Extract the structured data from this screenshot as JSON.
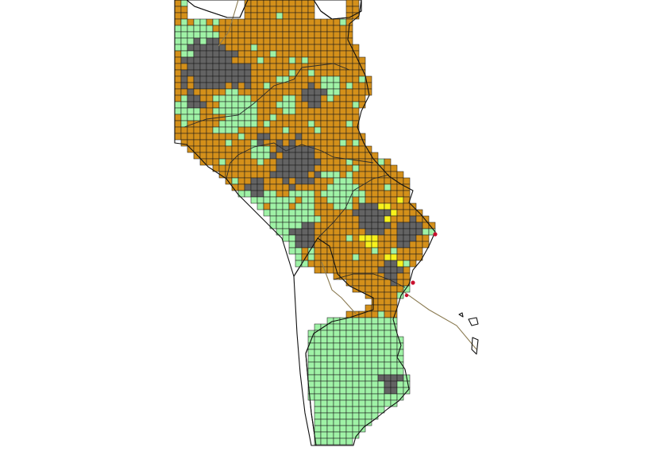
{
  "map": {
    "colors": {
      "background": "#ffffff",
      "land_outside": "#f3f3f3",
      "orange": "#d4901a",
      "green": "#9ff2a6",
      "gray": "#636363",
      "yellow": "#f7f21c",
      "grid_line": "#1a1a1a",
      "coast_line": "#111111",
      "boundary_line": "#8b7b52",
      "marker_red": "#c8102e"
    },
    "legend": [],
    "classes": [
      "orange",
      "green",
      "gray",
      "yellow"
    ]
  }
}
